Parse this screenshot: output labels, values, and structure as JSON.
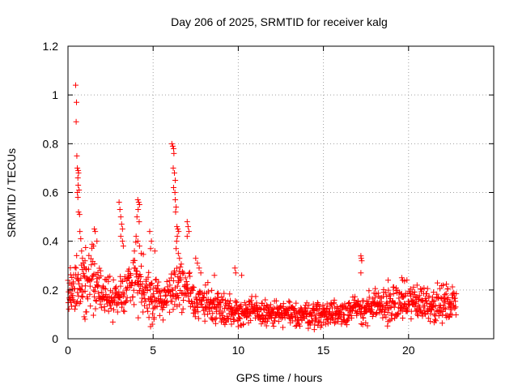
{
  "chart_data": {
    "type": "scatter",
    "title": "Day 206 of 2025, SRMTID for receiver kalg",
    "xlabel": "GPS time / hours",
    "ylabel": "SRMTID / TECUs",
    "xlim": [
      0,
      25
    ],
    "ylim": [
      0,
      1.2
    ],
    "x_ticks": [
      0,
      5,
      10,
      15,
      20
    ],
    "x_tick_labels": [
      "0",
      "5",
      "10",
      "15",
      "20"
    ],
    "y_ticks": [
      0,
      0.2,
      0.4,
      0.6,
      0.8,
      1.0,
      1.2
    ],
    "y_tick_labels": [
      "0",
      "0.2",
      "0.4",
      "0.6",
      "0.8",
      "1",
      "1.2"
    ],
    "grid": true,
    "marker": "plus",
    "color": "#ff0000",
    "series": [
      {
        "name": "SRMTID",
        "profile": [
          [
            0.0,
            0.2
          ],
          [
            0.5,
            0.22
          ],
          [
            1.0,
            0.24
          ],
          [
            1.5,
            0.25
          ],
          [
            2.0,
            0.2
          ],
          [
            2.5,
            0.16
          ],
          [
            3.0,
            0.17
          ],
          [
            3.5,
            0.22
          ],
          [
            4.0,
            0.25
          ],
          [
            4.5,
            0.2
          ],
          [
            5.0,
            0.17
          ],
          [
            5.5,
            0.16
          ],
          [
            6.0,
            0.19
          ],
          [
            6.5,
            0.22
          ],
          [
            7.0,
            0.18
          ],
          [
            7.5,
            0.16
          ],
          [
            8.0,
            0.15
          ],
          [
            8.5,
            0.14
          ],
          [
            9.0,
            0.13
          ],
          [
            9.5,
            0.12
          ],
          [
            10.0,
            0.11
          ],
          [
            11.0,
            0.11
          ],
          [
            12.0,
            0.1
          ],
          [
            13.0,
            0.1
          ],
          [
            14.0,
            0.1
          ],
          [
            15.0,
            0.1
          ],
          [
            16.0,
            0.11
          ],
          [
            17.0,
            0.12
          ],
          [
            18.0,
            0.13
          ],
          [
            19.0,
            0.14
          ],
          [
            20.0,
            0.15
          ],
          [
            21.0,
            0.15
          ],
          [
            22.0,
            0.14
          ],
          [
            22.8,
            0.15
          ]
        ],
        "outliers": [
          [
            0.45,
            1.04
          ],
          [
            0.5,
            0.97
          ],
          [
            0.48,
            0.89
          ],
          [
            0.52,
            0.75
          ],
          [
            0.55,
            0.7
          ],
          [
            0.6,
            0.69
          ],
          [
            0.62,
            0.68
          ],
          [
            0.58,
            0.66
          ],
          [
            0.6,
            0.63
          ],
          [
            0.65,
            0.61
          ],
          [
            0.55,
            0.6
          ],
          [
            0.58,
            0.58
          ],
          [
            0.62,
            0.52
          ],
          [
            0.68,
            0.51
          ],
          [
            0.7,
            0.44
          ],
          [
            0.75,
            0.41
          ],
          [
            0.8,
            0.36
          ],
          [
            0.85,
            0.33
          ],
          [
            0.9,
            0.31
          ],
          [
            1.0,
            0.32
          ],
          [
            1.55,
            0.45
          ],
          [
            1.6,
            0.44
          ],
          [
            1.7,
            0.4
          ],
          [
            1.5,
            0.38
          ],
          [
            3.0,
            0.56
          ],
          [
            3.05,
            0.53
          ],
          [
            3.1,
            0.5
          ],
          [
            3.15,
            0.47
          ],
          [
            3.2,
            0.45
          ],
          [
            3.1,
            0.42
          ],
          [
            3.2,
            0.4
          ],
          [
            3.25,
            0.38
          ],
          [
            4.1,
            0.57
          ],
          [
            4.15,
            0.56
          ],
          [
            4.2,
            0.55
          ],
          [
            4.12,
            0.53
          ],
          [
            4.05,
            0.5
          ],
          [
            4.18,
            0.48
          ],
          [
            4.0,
            0.42
          ],
          [
            4.1,
            0.4
          ],
          [
            4.2,
            0.38
          ],
          [
            3.9,
            0.36
          ],
          [
            4.3,
            0.35
          ],
          [
            4.8,
            0.44
          ],
          [
            4.9,
            0.4
          ],
          [
            4.85,
            0.37
          ],
          [
            5.1,
            0.36
          ],
          [
            6.1,
            0.8
          ],
          [
            6.15,
            0.79
          ],
          [
            6.2,
            0.78
          ],
          [
            6.22,
            0.76
          ],
          [
            6.18,
            0.7
          ],
          [
            6.25,
            0.68
          ],
          [
            6.3,
            0.65
          ],
          [
            6.2,
            0.62
          ],
          [
            6.28,
            0.6
          ],
          [
            6.3,
            0.57
          ],
          [
            6.35,
            0.54
          ],
          [
            6.32,
            0.52
          ],
          [
            6.4,
            0.46
          ],
          [
            6.45,
            0.45
          ],
          [
            6.5,
            0.44
          ],
          [
            6.42,
            0.42
          ],
          [
            6.38,
            0.4
          ],
          [
            6.35,
            0.37
          ],
          [
            6.48,
            0.35
          ],
          [
            6.55,
            0.33
          ],
          [
            7.0,
            0.48
          ],
          [
            7.05,
            0.46
          ],
          [
            7.1,
            0.44
          ],
          [
            7.0,
            0.42
          ],
          [
            7.5,
            0.33
          ],
          [
            7.6,
            0.31
          ],
          [
            7.7,
            0.29
          ],
          [
            7.8,
            0.27
          ],
          [
            9.8,
            0.29
          ],
          [
            9.85,
            0.27
          ],
          [
            10.2,
            0.26
          ],
          [
            8.6,
            0.26
          ],
          [
            17.2,
            0.34
          ],
          [
            17.22,
            0.33
          ],
          [
            17.25,
            0.32
          ],
          [
            17.2,
            0.27
          ],
          [
            19.6,
            0.25
          ],
          [
            19.65,
            0.24
          ],
          [
            18.8,
            0.24
          ],
          [
            20.5,
            0.22
          ],
          [
            0.2,
            0.22
          ],
          [
            0.1,
            0.2
          ],
          [
            0.15,
            0.17
          ],
          [
            0.3,
            0.16
          ],
          [
            4.85,
            0.05
          ],
          [
            4.95,
            0.06
          ],
          [
            5.05,
            0.08
          ],
          [
            1.0,
            0.08
          ],
          [
            0.95,
            0.09
          ],
          [
            1.05,
            0.11
          ],
          [
            10.0,
            0.05
          ],
          [
            9.6,
            0.06
          ]
        ]
      }
    ]
  }
}
